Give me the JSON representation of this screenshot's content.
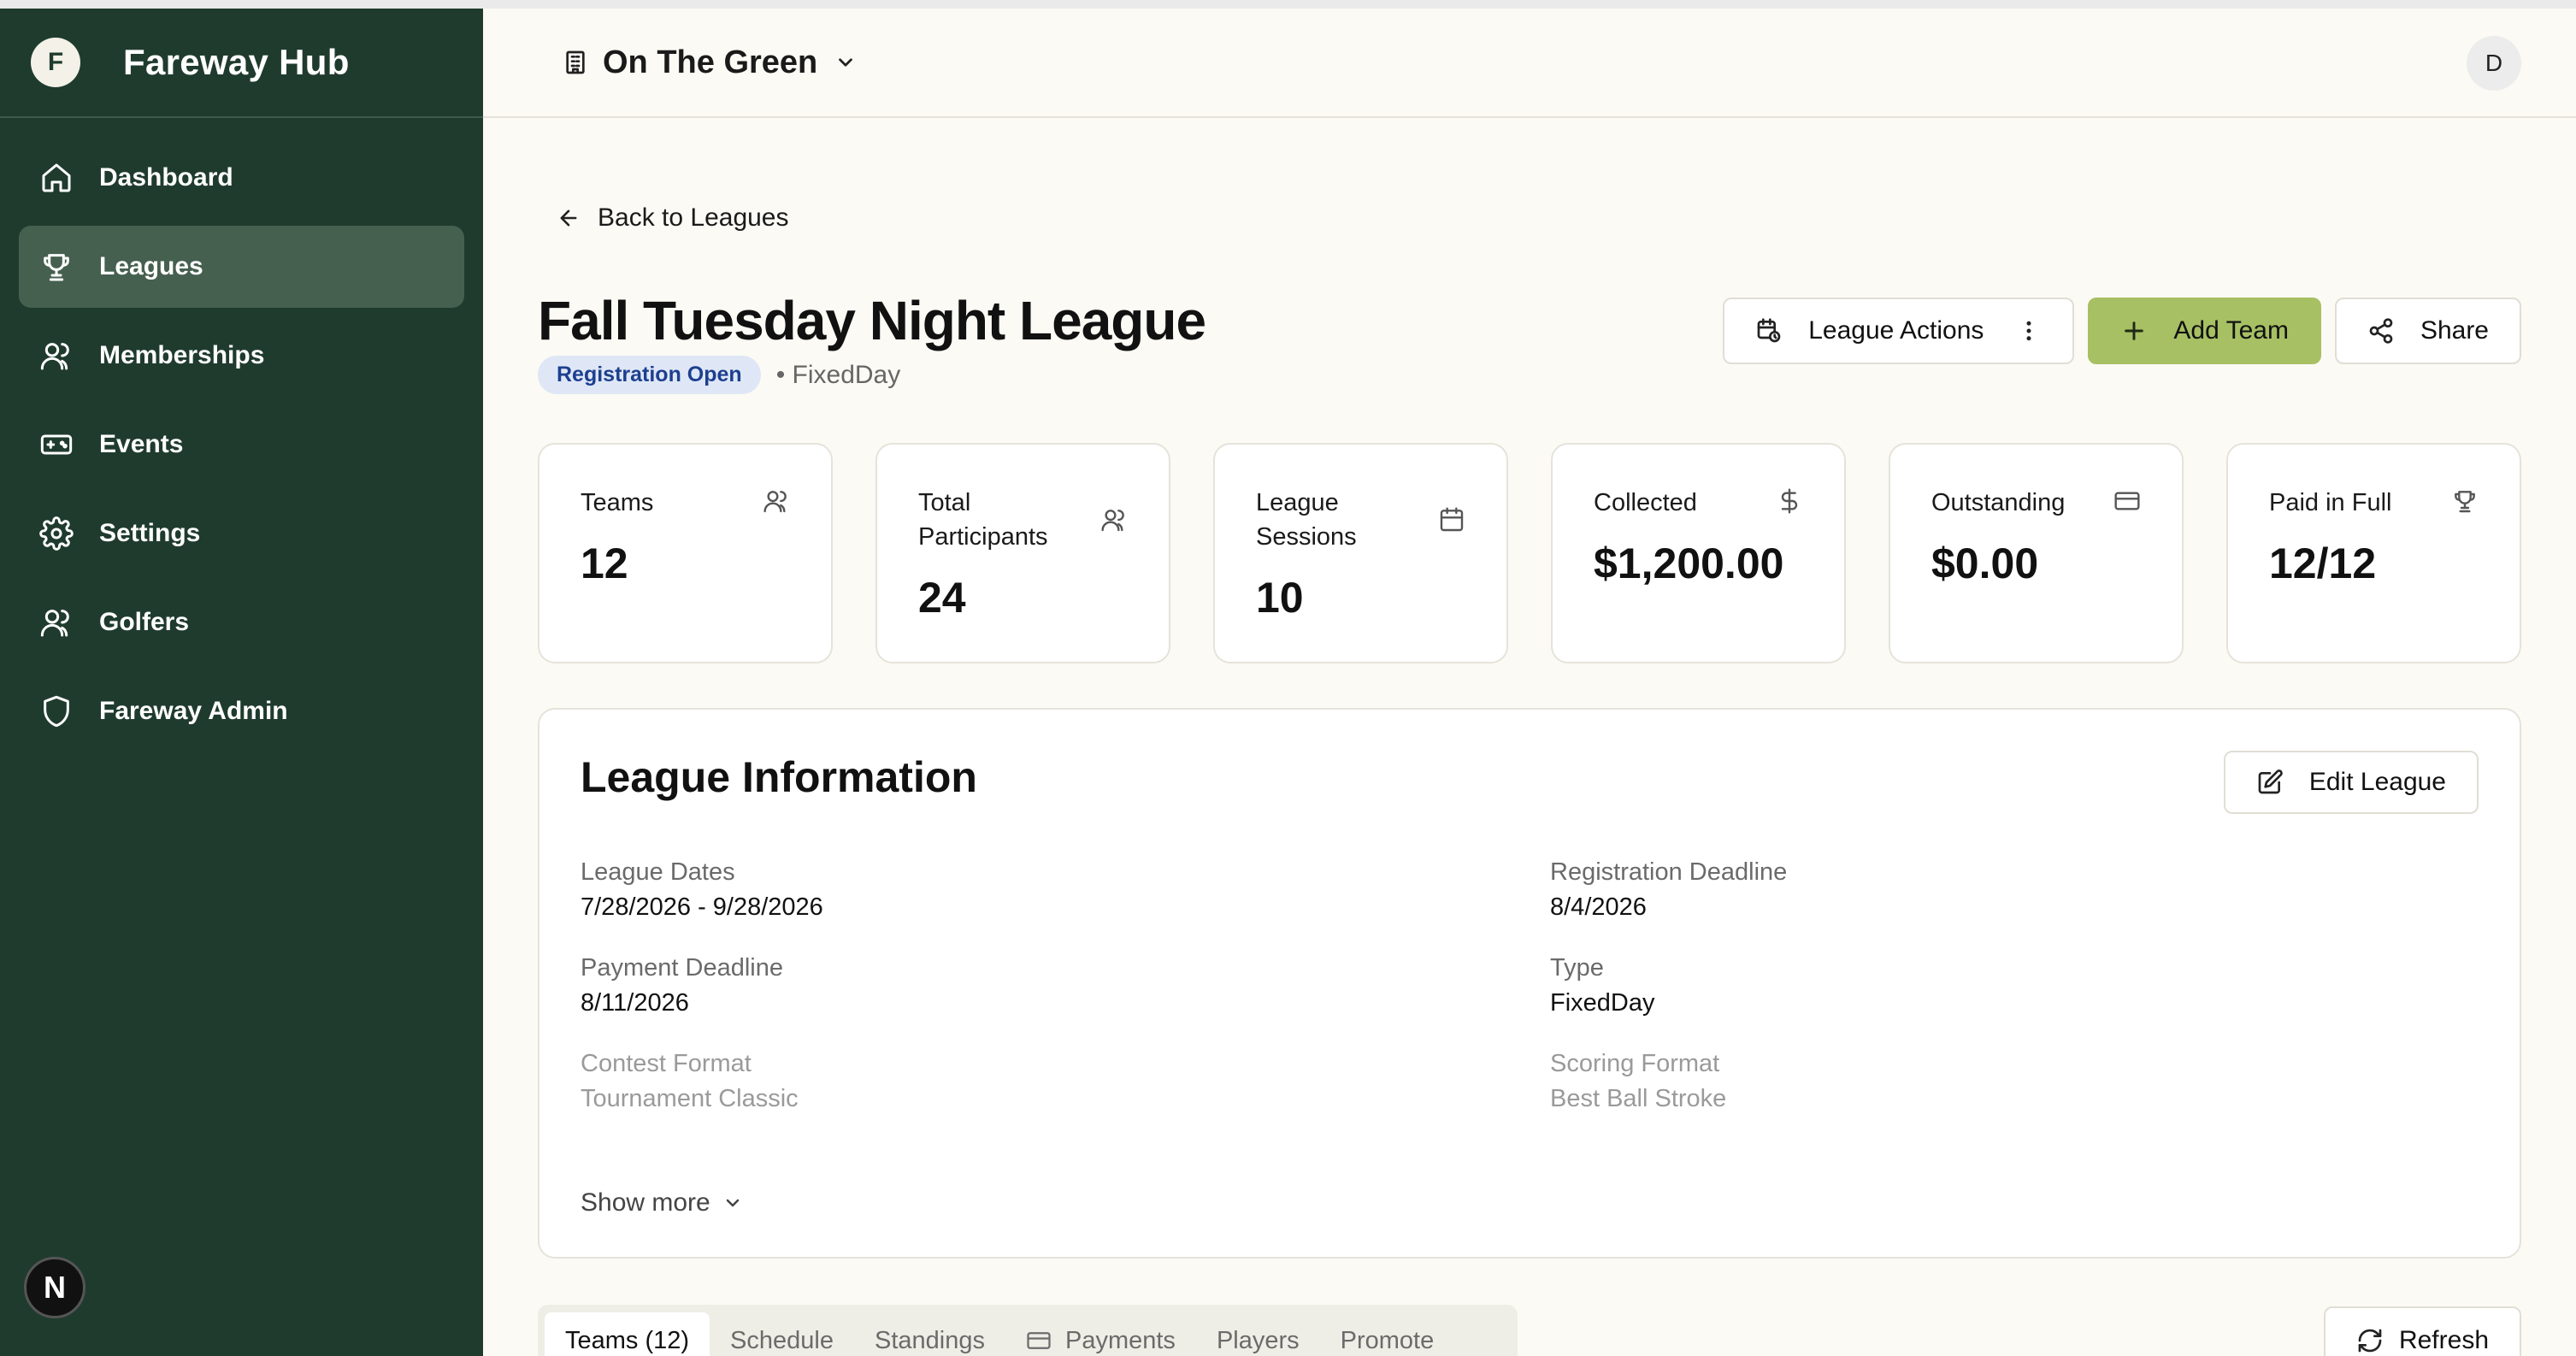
{
  "app": {
    "brand": "Fareway Hub",
    "brand_initial": "F"
  },
  "sidebar": {
    "items": [
      {
        "label": "Dashboard",
        "icon": "home-icon"
      },
      {
        "label": "Leagues",
        "icon": "trophy-icon",
        "active": true
      },
      {
        "label": "Memberships",
        "icon": "users-icon"
      },
      {
        "label": "Events",
        "icon": "ticket-icon"
      },
      {
        "label": "Settings",
        "icon": "gear-icon"
      },
      {
        "label": "Golfers",
        "icon": "users-icon"
      },
      {
        "label": "Fareway Admin",
        "icon": "shield-icon"
      }
    ],
    "footer_badge": "N"
  },
  "topbar": {
    "org_name": "On The Green",
    "avatar_initial": "D"
  },
  "page": {
    "back_label": "Back to Leagues",
    "title": "Fall Tuesday Night League",
    "status_badge": "Registration Open",
    "type_tag": "• FixedDay",
    "actions": {
      "league_actions": "League Actions",
      "add_team": "Add Team",
      "share": "Share"
    }
  },
  "stats": [
    {
      "label": "Teams",
      "value": "12",
      "icon": "users-icon"
    },
    {
      "label": "Total Participants",
      "value": "24",
      "icon": "users-icon"
    },
    {
      "label": "League Sessions",
      "value": "10",
      "icon": "calendar-icon"
    },
    {
      "label": "Collected",
      "value": "$1,200.00",
      "icon": "dollar-icon"
    },
    {
      "label": "Outstanding",
      "value": "$0.00",
      "icon": "credit-card-icon"
    },
    {
      "label": "Paid in Full",
      "value": "12/12",
      "icon": "trophy-icon"
    }
  ],
  "info": {
    "title": "League Information",
    "edit_label": "Edit League",
    "fields": {
      "league_dates": {
        "label": "League Dates",
        "value": "7/28/2026 - 9/28/2026"
      },
      "registration_deadline": {
        "label": "Registration Deadline",
        "value": "8/4/2026"
      },
      "payment_deadline": {
        "label": "Payment Deadline",
        "value": "8/11/2026"
      },
      "type": {
        "label": "Type",
        "value": "FixedDay"
      },
      "contest_format": {
        "label": "Contest Format",
        "value": "Tournament Classic"
      },
      "scoring_format": {
        "label": "Scoring Format",
        "value": "Best Ball Stroke"
      }
    },
    "show_more": "Show more"
  },
  "tabs": [
    {
      "label": "Teams (12)",
      "active": true
    },
    {
      "label": "Schedule"
    },
    {
      "label": "Standings"
    },
    {
      "label": "Payments",
      "icon": "credit-card-icon"
    },
    {
      "label": "Players"
    },
    {
      "label": "Promote"
    }
  ],
  "refresh_label": "Refresh",
  "colors": {
    "sidebar": "#1f3b2e",
    "active_nav": "#46604f",
    "primary_button": "#a7c063",
    "badge_bg": "#dfe7f7",
    "badge_text": "#1d3f8f"
  }
}
